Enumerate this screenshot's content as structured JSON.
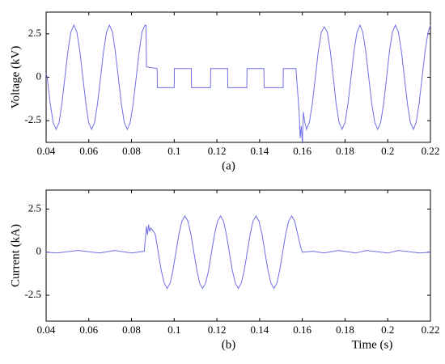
{
  "chart_data": [
    {
      "type": "line",
      "ylabel": "Voltage (kV)",
      "caption": "(a)",
      "xlim": [
        0.04,
        0.22
      ],
      "ylim": [
        -3.75,
        3.75
      ],
      "xticks": [
        0.04,
        0.06,
        0.08,
        0.1,
        0.12,
        0.14,
        0.16,
        0.18,
        0.2,
        0.22
      ],
      "yticks": [
        2.5,
        0,
        -2.5
      ],
      "series": [
        {
          "color": "#6f6fe8",
          "x": [
            0.04,
            0.0405,
            0.0419,
            0.0433,
            0.0447,
            0.0461,
            0.0474,
            0.0488,
            0.0502,
            0.0516,
            0.053,
            0.0544,
            0.0558,
            0.0572,
            0.0586,
            0.0599,
            0.0613,
            0.0627,
            0.0641,
            0.0655,
            0.0669,
            0.0683,
            0.0697,
            0.0711,
            0.0724,
            0.0738,
            0.0752,
            0.0766,
            0.078,
            0.0794,
            0.0808,
            0.0822,
            0.0836,
            0.0849,
            0.0863,
            0.0868,
            0.087,
            0.092,
            0.0921,
            0.1,
            0.1001,
            0.108,
            0.1081,
            0.117,
            0.1171,
            0.125,
            0.1251,
            0.134,
            0.1341,
            0.142,
            0.1421,
            0.151,
            0.1511,
            0.157,
            0.1585,
            0.159,
            0.1595,
            0.16,
            0.1605,
            0.161,
            0.1619,
            0.1633,
            0.1647,
            0.1661,
            0.1675,
            0.1689,
            0.1703,
            0.1717,
            0.1731,
            0.1745,
            0.1758,
            0.1772,
            0.1786,
            0.18,
            0.1814,
            0.1828,
            0.1842,
            0.1856,
            0.187,
            0.1883,
            0.1897,
            0.1911,
            0.1925,
            0.1939,
            0.1953,
            0.1967,
            0.1981,
            0.1995,
            0.2008,
            0.2022,
            0.2036,
            0.205,
            0.2064,
            0.2078,
            0.2092,
            0.2106,
            0.212,
            0.2133,
            0.2147,
            0.2161,
            0.2175,
            0.2189,
            0.22
          ],
          "values": [
            0.2,
            0,
            -1.5,
            -2.6,
            -3,
            -2.6,
            -1.5,
            0,
            1.5,
            2.6,
            3,
            2.6,
            1.5,
            0,
            -1.5,
            -2.6,
            -3,
            -2.6,
            -1.5,
            0,
            1.5,
            2.6,
            3,
            2.6,
            1.5,
            0,
            -1.5,
            -2.6,
            -3,
            -2.6,
            -1.5,
            0,
            1.5,
            2.6,
            3,
            3,
            0.6,
            0.5,
            -0.6,
            -0.6,
            0.5,
            0.5,
            -0.6,
            -0.6,
            0.5,
            0.5,
            -0.6,
            -0.6,
            0.5,
            0.5,
            -0.6,
            -0.6,
            0.5,
            0.5,
            -2,
            -3.5,
            -2.8,
            -3.8,
            -2,
            -2.5,
            -3,
            -2.6,
            -1.5,
            0,
            1.5,
            2.6,
            2.9,
            2.6,
            1.5,
            0,
            -1.5,
            -2.6,
            -3,
            -2.6,
            -1.5,
            0,
            1.5,
            2.6,
            3,
            2.6,
            1.5,
            0,
            -1.5,
            -2.6,
            -3,
            -2.6,
            -1.5,
            0,
            1.5,
            2.6,
            3,
            2.6,
            1.5,
            0,
            -1.5,
            -2.6,
            -3,
            -2.6,
            -1.5,
            0,
            1.5,
            2.6,
            3
          ]
        }
      ]
    },
    {
      "type": "line",
      "ylabel": "Current (kA)",
      "caption": "(b)",
      "xlabel": "Time (s)",
      "xlim": [
        0.04,
        0.22
      ],
      "ylim": [
        -4,
        3.6
      ],
      "xticks": [
        0.04,
        0.06,
        0.08,
        0.1,
        0.12,
        0.14,
        0.16,
        0.18,
        0.2,
        0.22
      ],
      "yticks": [
        2.5,
        0,
        -2.5
      ],
      "series": [
        {
          "color": "#6f6fe8",
          "x": [
            0.04,
            0.045,
            0.055,
            0.065,
            0.072,
            0.08,
            0.086,
            0.087,
            0.0875,
            0.088,
            0.0885,
            0.089,
            0.0911,
            0.0925,
            0.0939,
            0.0953,
            0.0967,
            0.0981,
            0.0994,
            0.1008,
            0.1022,
            0.1036,
            0.105,
            0.1064,
            0.1078,
            0.1092,
            0.1106,
            0.1119,
            0.1133,
            0.1147,
            0.1161,
            0.1175,
            0.1189,
            0.1203,
            0.1217,
            0.1231,
            0.1244,
            0.1258,
            0.1272,
            0.1286,
            0.13,
            0.1314,
            0.1328,
            0.1342,
            0.1356,
            0.1369,
            0.1383,
            0.1397,
            0.1411,
            0.1425,
            0.1439,
            0.1453,
            0.1467,
            0.1481,
            0.1494,
            0.1508,
            0.1522,
            0.1536,
            0.155,
            0.1564,
            0.1578,
            0.1592,
            0.16,
            0.165,
            0.17,
            0.177,
            0.185,
            0.19,
            0.2,
            0.205,
            0.215,
            0.22
          ],
          "values": [
            0,
            -0.05,
            0.1,
            -0.05,
            0.1,
            -0.05,
            0.05,
            1.5,
            1,
            1.6,
            1.2,
            1.4,
            1.05,
            0,
            -1.05,
            -1.8,
            -2.1,
            -1.8,
            -1.05,
            0,
            1.05,
            1.8,
            2.1,
            1.8,
            1.05,
            0,
            -1.05,
            -1.8,
            -2.1,
            -1.8,
            -1.05,
            0,
            1.05,
            1.8,
            2.1,
            1.8,
            1.05,
            0,
            -1.05,
            -1.8,
            -2.1,
            -1.8,
            -1.05,
            0,
            1.05,
            1.8,
            2.1,
            1.8,
            1.05,
            0,
            -1.05,
            -1.8,
            -2.1,
            -1.8,
            -1.05,
            0,
            1.05,
            1.8,
            2.1,
            1.8,
            1.05,
            0.3,
            0,
            0.05,
            -0.05,
            0.1,
            -0.05,
            0.1,
            -0.05,
            0.1,
            -0.05,
            0
          ]
        }
      ]
    }
  ]
}
